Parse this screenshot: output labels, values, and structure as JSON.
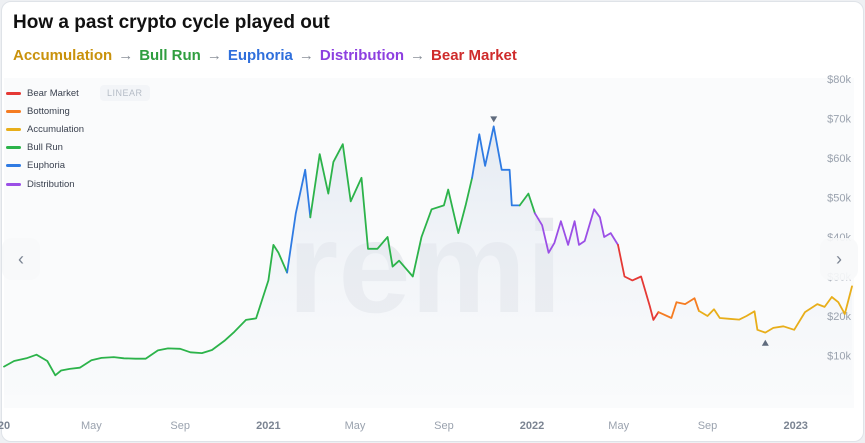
{
  "title": "How a past crypto cycle played out",
  "phase_flow": {
    "items": [
      {
        "label": "Accumulation",
        "color": "#c9920c"
      },
      {
        "label": "Bull Run",
        "color": "#2f9e3f"
      },
      {
        "label": "Euphoria",
        "color": "#2f6fdc"
      },
      {
        "label": "Distribution",
        "color": "#8d3fe0"
      },
      {
        "label": "Bear Market",
        "color": "#cf2c2c"
      }
    ],
    "arrow": "→"
  },
  "scale_label": "LINEAR",
  "watermark": "remi",
  "nav": {
    "prev_icon": "‹",
    "next_icon": "›"
  },
  "chart_data": {
    "type": "line",
    "title": "",
    "xlabel": "",
    "ylabel": "",
    "grid": false,
    "legend_position": "top-left",
    "x_range": [
      "2020-01",
      "2023-03"
    ],
    "ylim": [
      0,
      80000
    ],
    "y_ticks": [
      {
        "value": 10000,
        "label": "$10k"
      },
      {
        "value": 20000,
        "label": "$20k"
      },
      {
        "value": 30000,
        "label": "$30k"
      },
      {
        "value": 40000,
        "label": "$40k"
      },
      {
        "value": 50000,
        "label": "$50k"
      },
      {
        "value": 60000,
        "label": "$60k"
      },
      {
        "value": 70000,
        "label": "$70k"
      },
      {
        "value": 80000,
        "label": "$80k"
      }
    ],
    "x_ticks": [
      {
        "date": "2020-01",
        "label": "20",
        "bold": true
      },
      {
        "date": "2020-05",
        "label": "May",
        "bold": false
      },
      {
        "date": "2020-09",
        "label": "Sep",
        "bold": false
      },
      {
        "date": "2021-01",
        "label": "2021",
        "bold": true
      },
      {
        "date": "2021-05",
        "label": "May",
        "bold": false
      },
      {
        "date": "2021-09",
        "label": "Sep",
        "bold": false
      },
      {
        "date": "2022-01",
        "label": "2022",
        "bold": true
      },
      {
        "date": "2022-05",
        "label": "May",
        "bold": false
      },
      {
        "date": "2022-09",
        "label": "Sep",
        "bold": false
      },
      {
        "date": "2023-01",
        "label": "2023",
        "bold": true
      }
    ],
    "legend": [
      {
        "name": "Bear Market",
        "color": "#e53935"
      },
      {
        "name": "Bottoming",
        "color": "#f57c22"
      },
      {
        "name": "Accumulation",
        "color": "#e8ae1a"
      },
      {
        "name": "Bull Run",
        "color": "#2cb34a"
      },
      {
        "name": "Euphoria",
        "color": "#2f7be3"
      },
      {
        "name": "Distribution",
        "color": "#9b4fe6"
      }
    ],
    "markers": [
      {
        "date": "2021-11-09",
        "value": 68000,
        "shape": "down-triangle"
      },
      {
        "date": "2022-11-20",
        "value": 15500,
        "shape": "up-triangle"
      }
    ],
    "series": [
      {
        "name": "Bull Run",
        "color": "#2cb34a",
        "points": [
          [
            "2020-01-01",
            7200
          ],
          [
            "2020-01-15",
            8600
          ],
          [
            "2020-02-01",
            9300
          ],
          [
            "2020-02-15",
            10200
          ],
          [
            "2020-03-01",
            8600
          ],
          [
            "2020-03-12",
            5000
          ],
          [
            "2020-03-20",
            6200
          ],
          [
            "2020-04-01",
            6600
          ],
          [
            "2020-04-15",
            6900
          ],
          [
            "2020-05-01",
            8800
          ],
          [
            "2020-05-15",
            9400
          ],
          [
            "2020-06-01",
            9600
          ],
          [
            "2020-06-15",
            9300
          ],
          [
            "2020-07-01",
            9200
          ],
          [
            "2020-07-15",
            9200
          ],
          [
            "2020-08-01",
            11300
          ],
          [
            "2020-08-15",
            11800
          ],
          [
            "2020-09-01",
            11700
          ],
          [
            "2020-09-15",
            10800
          ],
          [
            "2020-10-01",
            10600
          ],
          [
            "2020-10-15",
            11400
          ],
          [
            "2020-11-01",
            13700
          ],
          [
            "2020-11-15",
            16000
          ],
          [
            "2020-12-01",
            19000
          ],
          [
            "2020-12-15",
            19400
          ],
          [
            "2021-01-01",
            29000
          ],
          [
            "2021-01-08",
            38000
          ],
          [
            "2021-01-15",
            36000
          ],
          [
            "2021-01-27",
            31000
          ]
        ]
      },
      {
        "name": "Euphoria",
        "color": "#2f7be3",
        "points": [
          [
            "2021-01-27",
            31000
          ],
          [
            "2021-02-08",
            46000
          ],
          [
            "2021-02-21",
            57000
          ],
          [
            "2021-02-28",
            45000
          ]
        ]
      },
      {
        "name": "Bull Run",
        "color": "#2cb34a",
        "points": [
          [
            "2021-02-28",
            45000
          ],
          [
            "2021-03-13",
            61000
          ],
          [
            "2021-03-25",
            51000
          ],
          [
            "2021-04-01",
            59000
          ],
          [
            "2021-04-14",
            63500
          ],
          [
            "2021-04-25",
            49000
          ],
          [
            "2021-05-10",
            55000
          ],
          [
            "2021-05-19",
            37000
          ],
          [
            "2021-06-01",
            37000
          ],
          [
            "2021-06-15",
            40000
          ],
          [
            "2021-06-22",
            32500
          ],
          [
            "2021-07-01",
            34000
          ],
          [
            "2021-07-20",
            30000
          ],
          [
            "2021-08-01",
            40000
          ],
          [
            "2021-08-15",
            47000
          ],
          [
            "2021-09-01",
            48000
          ],
          [
            "2021-09-07",
            52000
          ],
          [
            "2021-09-21",
            41000
          ],
          [
            "2021-10-01",
            48000
          ],
          [
            "2021-10-10",
            55000
          ]
        ]
      },
      {
        "name": "Euphoria",
        "color": "#2f7be3",
        "points": [
          [
            "2021-10-10",
            55000
          ],
          [
            "2021-10-20",
            66000
          ],
          [
            "2021-10-28",
            58000
          ],
          [
            "2021-11-09",
            68000
          ],
          [
            "2021-11-20",
            57000
          ],
          [
            "2021-12-01",
            57000
          ],
          [
            "2021-12-04",
            48000
          ],
          [
            "2021-12-15",
            48000
          ]
        ]
      },
      {
        "name": "Bull Run",
        "color": "#2cb34a",
        "points": [
          [
            "2021-12-15",
            48000
          ],
          [
            "2021-12-27",
            51000
          ],
          [
            "2022-01-05",
            46000
          ]
        ]
      },
      {
        "name": "Distribution",
        "color": "#9b4fe6",
        "points": [
          [
            "2022-01-05",
            46000
          ],
          [
            "2022-01-15",
            43000
          ],
          [
            "2022-01-24",
            36000
          ],
          [
            "2022-02-01",
            38500
          ],
          [
            "2022-02-10",
            44000
          ],
          [
            "2022-02-20",
            38000
          ],
          [
            "2022-03-01",
            44000
          ],
          [
            "2022-03-07",
            38000
          ],
          [
            "2022-03-15",
            39000
          ],
          [
            "2022-03-28",
            47000
          ],
          [
            "2022-04-05",
            45000
          ],
          [
            "2022-04-11",
            40000
          ],
          [
            "2022-04-20",
            41000
          ],
          [
            "2022-04-30",
            38000
          ]
        ]
      },
      {
        "name": "Bear Market",
        "color": "#e53935",
        "points": [
          [
            "2022-04-30",
            38000
          ],
          [
            "2022-05-09",
            30000
          ],
          [
            "2022-05-20",
            29000
          ],
          [
            "2022-06-01",
            30000
          ],
          [
            "2022-06-13",
            22500
          ],
          [
            "2022-06-18",
            19000
          ],
          [
            "2022-06-25",
            21000
          ]
        ]
      },
      {
        "name": "Bottoming",
        "color": "#f57c22",
        "points": [
          [
            "2022-06-25",
            21000
          ],
          [
            "2022-07-13",
            19500
          ],
          [
            "2022-07-20",
            23500
          ],
          [
            "2022-08-01",
            23000
          ],
          [
            "2022-08-14",
            24500
          ],
          [
            "2022-08-20",
            21300
          ]
        ]
      },
      {
        "name": "Accumulation",
        "color": "#e8ae1a",
        "points": [
          [
            "2022-08-20",
            21300
          ],
          [
            "2022-09-01",
            20000
          ],
          [
            "2022-09-10",
            21700
          ],
          [
            "2022-09-18",
            19500
          ],
          [
            "2022-10-01",
            19300
          ],
          [
            "2022-10-15",
            19100
          ],
          [
            "2022-10-25",
            20000
          ],
          [
            "2022-11-05",
            21200
          ],
          [
            "2022-11-09",
            16500
          ],
          [
            "2022-11-20",
            15800
          ],
          [
            "2022-12-01",
            17000
          ],
          [
            "2022-12-15",
            17400
          ],
          [
            "2022-12-30",
            16500
          ],
          [
            "2023-01-14",
            21000
          ],
          [
            "2023-01-31",
            23000
          ],
          [
            "2023-02-10",
            22300
          ],
          [
            "2023-02-20",
            24800
          ],
          [
            "2023-03-01",
            23500
          ],
          [
            "2023-03-10",
            20500
          ],
          [
            "2023-03-20",
            27500
          ]
        ]
      }
    ]
  }
}
